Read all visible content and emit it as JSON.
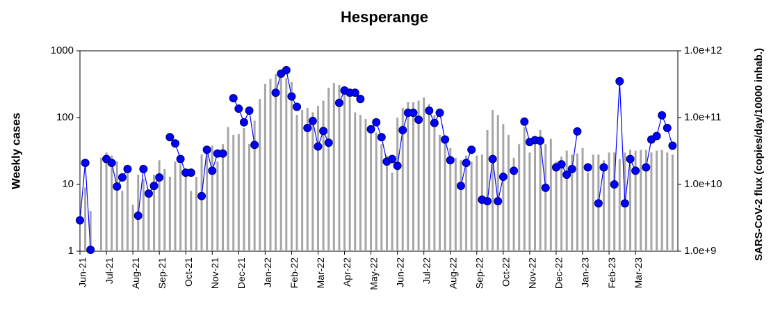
{
  "chart_data": {
    "type": "bar-line",
    "title": "Hesperange",
    "y_label": "Weekly cases",
    "y2_label": "SARS-CoV-2 flux (copies/day/10000 inhab.)",
    "log_scale": true,
    "categories": [
      "Jun-21",
      null,
      null,
      null,
      null,
      "Jul-21",
      null,
      null,
      null,
      null,
      "Aug-21",
      null,
      null,
      null,
      null,
      "Sep-21",
      null,
      null,
      null,
      null,
      "Oct-21",
      null,
      null,
      null,
      null,
      "Nov-21",
      null,
      null,
      null,
      null,
      "Dec-21",
      null,
      null,
      null,
      null,
      "Jan-22",
      null,
      null,
      null,
      null,
      "Feb-22",
      null,
      null,
      null,
      null,
      "Mar-22",
      null,
      null,
      null,
      null,
      "Apr-22",
      null,
      null,
      null,
      null,
      "May-22",
      null,
      null,
      null,
      null,
      "Jun-22",
      null,
      null,
      null,
      null,
      "Jul-22",
      null,
      null,
      null,
      null,
      "Aug-22",
      null,
      null,
      null,
      null,
      "Sep-22",
      null,
      null,
      null,
      null,
      "Oct-22",
      null,
      null,
      null,
      null,
      "Nov-22",
      null,
      null,
      null,
      null,
      "Dec-22",
      null,
      null,
      null,
      null,
      "Jan-23",
      null,
      null,
      null,
      null,
      "Feb-23",
      null,
      null,
      null,
      null,
      "Mar-23",
      null,
      null,
      null,
      null,
      null,
      null,
      null
    ],
    "ylim": [
      1,
      1000
    ],
    "yticks": [
      1,
      10,
      100,
      1000
    ],
    "y2lim": [
      1000000000.0,
      1000000000000.0
    ],
    "y2ticks": [
      {
        "value": 1000000000.0,
        "label": "1.0e+9"
      },
      {
        "value": 10000000000.0,
        "label": "1.0e+10"
      },
      {
        "value": 100000000000.0,
        "label": "1.0e+11"
      },
      {
        "value": 1000000000000.0,
        "label": "1.0e+12"
      }
    ],
    "series": [
      {
        "type": "bar",
        "color": "#a6a6a6",
        "axis": "y",
        "values": [
          null,
          9,
          4,
          null,
          25,
          30,
          27,
          22,
          8,
          18,
          5,
          14,
          12,
          7,
          14,
          23,
          17,
          13,
          22,
          20,
          17,
          8,
          13,
          28,
          35,
          38,
          22,
          40,
          72,
          55,
          57,
          70,
          40,
          90,
          190,
          320,
          380,
          450,
          500,
          390,
          340,
          110,
          130,
          140,
          120,
          150,
          180,
          280,
          330,
          310,
          270,
          200,
          120,
          110,
          95,
          60,
          60,
          40,
          27,
          15,
          100,
          140,
          170,
          170,
          180,
          200,
          160,
          110,
          55,
          42,
          35,
          25,
          23,
          27,
          22,
          27,
          28,
          65,
          130,
          110,
          80,
          55,
          25,
          40,
          72,
          30,
          50,
          65,
          40,
          48,
          22,
          26,
          32,
          28,
          29,
          35,
          15,
          28,
          28,
          23,
          30,
          30,
          24,
          30,
          33,
          32,
          33,
          33,
          30,
          32,
          33,
          30,
          28
        ]
      },
      {
        "type": "line",
        "color": "#0000ff",
        "axis": "y2",
        "values": [
          2900000000.0,
          21000000000.0,
          1050000000.0,
          null,
          null,
          24000000000.0,
          21000000000.0,
          9300000000.0,
          12700000000.0,
          17000000000.0,
          null,
          3400000000.0,
          17000000000.0,
          7300000000.0,
          9500000000.0,
          12700000000.0,
          null,
          51000000000.0,
          41000000000.0,
          24000000000.0,
          15000000000.0,
          15000000000.0,
          null,
          6700000000.0,
          33000000000.0,
          16000000000.0,
          29000000000.0,
          29000000000.0,
          null,
          195000000000.0,
          136000000000.0,
          85000000000.0,
          127000000000.0,
          39000000000.0,
          null,
          null,
          null,
          236000000000.0,
          455000000000.0,
          512000000000.0,
          207000000000.0,
          145000000000.0,
          null,
          70000000000.0,
          89000000000.0,
          37000000000.0,
          63000000000.0,
          42000000000.0,
          null,
          166000000000.0,
          255000000000.0,
          236000000000.0,
          236000000000.0,
          190000000000.0,
          null,
          67000000000.0,
          85000000000.0,
          51000000000.0,
          22000000000.0,
          24000000000.0,
          19000000000.0,
          65000000000.0,
          118000000000.0,
          118000000000.0,
          93000000000.0,
          null,
          127000000000.0,
          83000000000.0,
          118000000000.0,
          47000000000.0,
          23000000000.0,
          null,
          9500000000.0,
          21000000000.0,
          33000000000.0,
          null,
          5900000000.0,
          5600000000.0,
          24000000000.0,
          5600000000.0,
          13000000000.0,
          null,
          16000000000.0,
          null,
          87000000000.0,
          43000000000.0,
          46000000000.0,
          45000000000.0,
          8900000000.0,
          null,
          18000000000.0,
          20000000000.0,
          14000000000.0,
          17000000000.0,
          62000000000.0,
          null,
          18000000000.0,
          null,
          5200000000.0,
          18000000000.0,
          null,
          10000000000.0,
          350000000000.0,
          5200000000.0,
          24000000000.0,
          16000000000.0,
          null,
          18000000000.0,
          47000000000.0,
          53000000000.0,
          108000000000.0,
          70000000000.0,
          38000000000.0
        ]
      }
    ]
  }
}
